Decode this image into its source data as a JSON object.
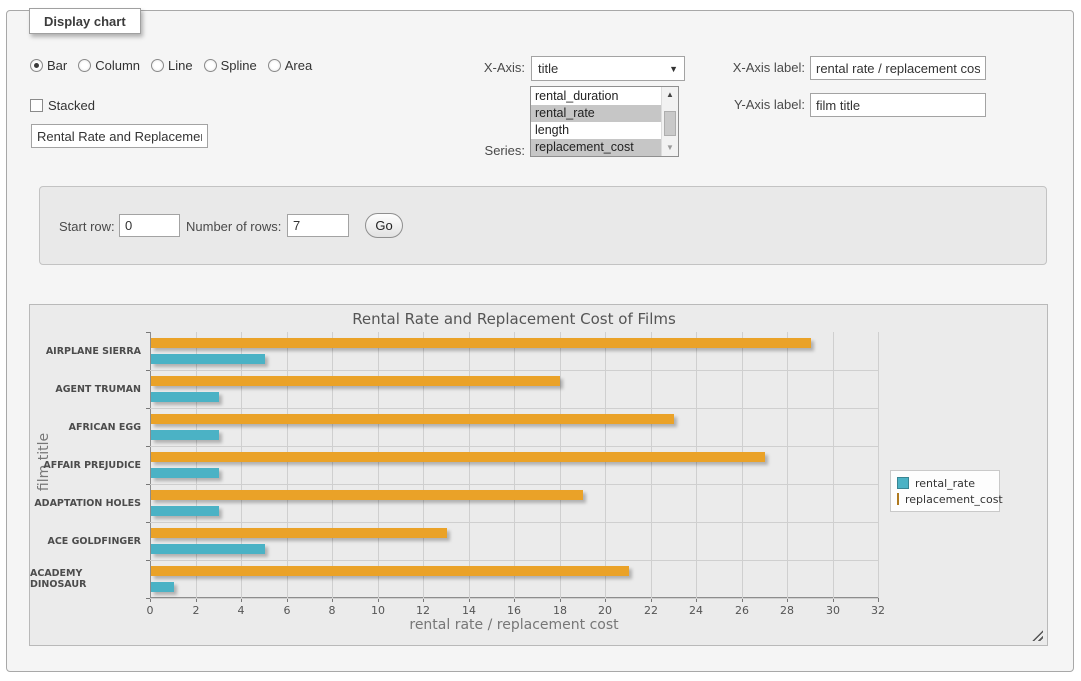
{
  "panel": {
    "tab_label": "Display chart",
    "chart_types": [
      {
        "label": "Bar",
        "selected": true
      },
      {
        "label": "Column",
        "selected": false
      },
      {
        "label": "Line",
        "selected": false
      },
      {
        "label": "Spline",
        "selected": false
      },
      {
        "label": "Area",
        "selected": false
      }
    ],
    "stacked_label": "Stacked",
    "title_input_value": "Rental Rate and Replacement Cost of Films",
    "x_axis": {
      "label": "X-Axis:",
      "selected": "title"
    },
    "series_select": {
      "label": "Series:",
      "options": [
        {
          "label": "rental_duration",
          "selected": false
        },
        {
          "label": "rental_rate",
          "selected": true
        },
        {
          "label": "length",
          "selected": false
        },
        {
          "label": "replacement_cost",
          "selected": true
        }
      ]
    },
    "x_axis_label_field": {
      "label": "X-Axis label:",
      "value": "rental rate / replacement cost"
    },
    "y_axis_label_field": {
      "label": "Y-Axis label:",
      "value": "film title"
    }
  },
  "row_controls": {
    "start_row_label": "Start row:",
    "start_row_value": "0",
    "num_rows_label": "Number of rows:",
    "num_rows_value": "7",
    "go_label": "Go"
  },
  "chart_data": {
    "type": "bar",
    "orientation": "horizontal",
    "title": "Rental Rate and Replacement Cost of Films",
    "xlabel": "rental rate / replacement cost",
    "ylabel": "film title",
    "categories": [
      "AIRPLANE SIERRA",
      "AGENT TRUMAN",
      "AFRICAN EGG",
      "AFFAIR PREJUDICE",
      "ADAPTATION HOLES",
      "ACE GOLDFINGER",
      "ACADEMY DINOSAUR"
    ],
    "series": [
      {
        "name": "rental_rate",
        "color": "#4bb2c5",
        "values": [
          4.99,
          2.99,
          2.99,
          2.99,
          2.99,
          4.99,
          0.99
        ]
      },
      {
        "name": "replacement_cost",
        "color": "#eaa228",
        "values": [
          28.99,
          17.99,
          22.99,
          26.99,
          18.99,
          12.99,
          20.99
        ]
      }
    ],
    "xlim": [
      0,
      32
    ],
    "xticks": [
      0,
      2,
      4,
      6,
      8,
      10,
      12,
      14,
      16,
      18,
      20,
      22,
      24,
      26,
      28,
      30,
      32
    ],
    "grid": true,
    "legend_position": "right",
    "bar_order_top_to_bottom": [
      "replacement_cost",
      "rental_rate"
    ]
  }
}
